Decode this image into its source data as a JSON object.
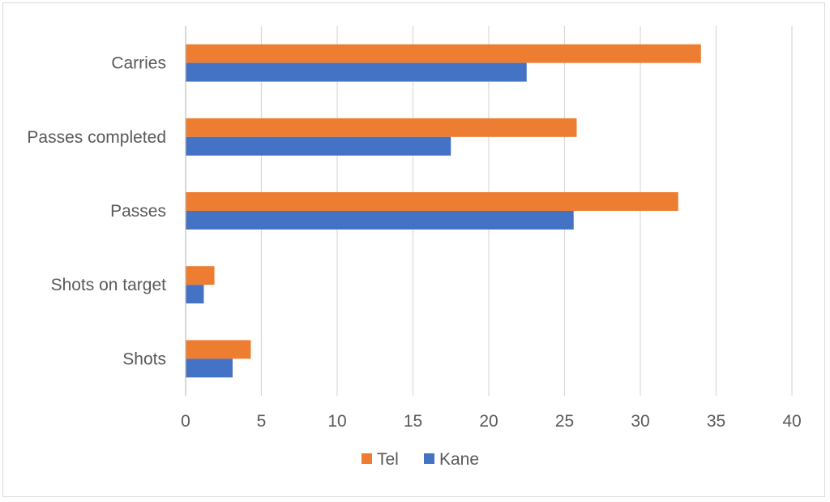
{
  "chart_data": {
    "type": "bar",
    "orientation": "horizontal",
    "categories": [
      "Carries",
      "Passes completed",
      "Passes",
      "Shots on target",
      "Shots"
    ],
    "series": [
      {
        "name": "Tel",
        "values": [
          34.0,
          25.8,
          32.5,
          1.9,
          4.3
        ],
        "color": "#ED7D31"
      },
      {
        "name": "Kane",
        "values": [
          22.5,
          17.5,
          25.6,
          1.2,
          3.1
        ],
        "color": "#4472C4"
      }
    ],
    "xlim": [
      0,
      40
    ],
    "xticks": [
      0,
      5,
      10,
      15,
      20,
      25,
      30,
      35,
      40
    ],
    "grid": true,
    "legend_position": "bottom",
    "title": "",
    "xlabel": "",
    "ylabel": ""
  },
  "colors": {
    "grid": "#d9d9d9",
    "axis": "#bfbfbf",
    "text": "#595959"
  }
}
